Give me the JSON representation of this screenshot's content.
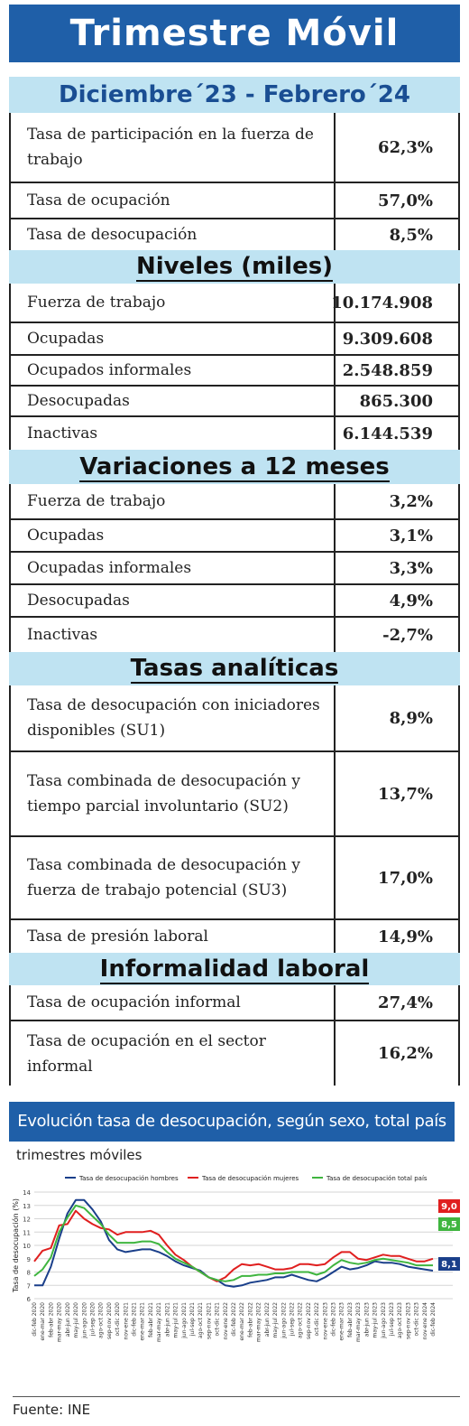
{
  "title": "Trimestre Móvil",
  "period": "Diciembre´23 - Febrero´24",
  "sections": {
    "niveles": "Niveles  (miles)",
    "variaciones": "Variaciones a 12 meses",
    "tasas": "Tasas  analíticas",
    "informalidad": "Informalidad  laboral"
  },
  "rows": [
    {
      "label": "Tasa de participación en la fuerza de trabajo",
      "value": "62,3%"
    },
    {
      "label": "Tasa de ocupación",
      "value": "57,0%"
    },
    {
      "label": "Tasa de desocupación",
      "value": "8,5%"
    },
    {
      "label": "Fuerza de trabajo",
      "value": "10.174.908"
    },
    {
      "label": "Ocupadas",
      "value": "9.309.608"
    },
    {
      "label": "Ocupados informales",
      "value": "2.548.859"
    },
    {
      "label": "Desocupadas",
      "value": "865.300"
    },
    {
      "label": "Inactivas",
      "value": "6.144.539"
    },
    {
      "label": "Fuerza de trabajo",
      "value": "3,2%"
    },
    {
      "label": "Ocupadas",
      "value": "3,1%"
    },
    {
      "label": "Ocupadas informales",
      "value": "3,3%"
    },
    {
      "label": "Desocupadas",
      "value": "4,9%"
    },
    {
      "label": "Inactivas",
      "value": "-2,7%"
    },
    {
      "label": "Tasa de desocupación con iniciadores disponibles (SU1)",
      "value": "8,9%"
    },
    {
      "label": "Tasa combinada de desocupación y tiempo parcial involuntario (SU2)",
      "value": "13,7%"
    },
    {
      "label": "Tasa combinada de desocupación y fuerza de trabajo potencial (SU3)",
      "value": "17,0%"
    },
    {
      "label": "Tasa de presión laboral",
      "value": "14,9%"
    },
    {
      "label": "Tasa de ocupación informal",
      "value": "27,4%"
    },
    {
      "label": "Tasa de ocupación en el sector informal",
      "value": "16,2%"
    }
  ],
  "chart_title": "Evolución tasa de desocupación, según sexo, total país",
  "chart_subtitle": "trimestres móviles",
  "source": "Fuente: INE",
  "chart_data": {
    "type": "line",
    "ylabel": "Tasa de desocupación (%)",
    "ylim": [
      6,
      14
    ],
    "yticks": [
      6,
      7,
      8,
      9,
      10,
      11,
      12,
      13,
      14
    ],
    "grid": true,
    "legend_position": "top",
    "x": [
      "dic-feb 2020",
      "ene-mar 2020",
      "feb-abr 2020",
      "mar-may 2020",
      "abr-jun 2020",
      "may-jul 2020",
      "jun-ago 2020",
      "jul-sep 2020",
      "ago-oct 2020",
      "sep-nov 2020",
      "oct-dic 2020",
      "nov-ene 2021",
      "dic-feb 2021",
      "ene-mar 2021",
      "feb-abr 2021",
      "mar-may 2021",
      "abr-jun 2021",
      "may-jul 2021",
      "jun-ago 2021",
      "jul-sep 2021",
      "ago-oct 2021",
      "sep-nov 2021",
      "oct-dic 2021",
      "nov-ene 2022",
      "dic-feb 2022",
      "ene-mar 2022",
      "feb-abr 2022",
      "mar-may 2022",
      "abr-jun 2022",
      "may-jul 2022",
      "jun-ago 2022",
      "jul-sep 2022",
      "ago-oct 2022",
      "sep-nov 2022",
      "oct-dic 2022",
      "nov-ene 2023",
      "dic-feb 2023",
      "ene-mar 2023",
      "feb-abr 2023",
      "mar-may 2023",
      "abr-jun 2023",
      "may-jul 2023",
      "jun-ago 2023",
      "jul-sep 2023",
      "ago-oct 2023",
      "sep-nov 2023",
      "oct-dic 2023",
      "nov-ene 2024",
      "dic-feb 2024"
    ],
    "series": [
      {
        "name": "Tasa de desocupación hombres",
        "color": "#1a3f8a",
        "end_label": "8,1",
        "values": [
          7.0,
          7.0,
          8.4,
          10.5,
          12.4,
          13.4,
          13.4,
          12.7,
          11.8,
          10.4,
          9.7,
          9.5,
          9.6,
          9.7,
          9.7,
          9.5,
          9.2,
          8.8,
          8.5,
          8.3,
          8.1,
          7.6,
          7.4,
          7.0,
          6.9,
          7.0,
          7.2,
          7.3,
          7.4,
          7.6,
          7.6,
          7.8,
          7.6,
          7.4,
          7.3,
          7.6,
          8.0,
          8.4,
          8.2,
          8.3,
          8.5,
          8.8,
          8.7,
          8.7,
          8.6,
          8.4,
          8.3,
          8.2,
          8.1
        ]
      },
      {
        "name": "Tasa de desocupación mujeres",
        "color": "#e01f1f",
        "end_label": "9,0",
        "values": [
          8.8,
          9.6,
          9.8,
          11.5,
          11.6,
          12.6,
          12.0,
          11.6,
          11.3,
          11.2,
          10.8,
          11.0,
          11.0,
          11.0,
          11.1,
          10.8,
          10.0,
          9.3,
          8.9,
          8.4,
          8.0,
          7.6,
          7.3,
          7.6,
          8.2,
          8.6,
          8.5,
          8.6,
          8.4,
          8.2,
          8.2,
          8.3,
          8.6,
          8.6,
          8.5,
          8.6,
          9.1,
          9.5,
          9.5,
          9.0,
          8.9,
          9.1,
          9.3,
          9.2,
          9.2,
          9.0,
          8.8,
          8.8,
          9.0
        ]
      },
      {
        "name": "Tasa de desocupación total país",
        "color": "#3fb53f",
        "end_label": "8,5",
        "values": [
          7.7,
          8.2,
          9.1,
          11.0,
          12.1,
          13.0,
          12.8,
          12.2,
          11.6,
          10.8,
          10.2,
          10.2,
          10.2,
          10.3,
          10.3,
          10.1,
          9.5,
          9.0,
          8.7,
          8.4,
          8.0,
          7.6,
          7.4,
          7.3,
          7.4,
          7.7,
          7.7,
          7.8,
          7.8,
          7.9,
          7.9,
          8.0,
          8.0,
          8.0,
          7.8,
          8.0,
          8.5,
          8.9,
          8.7,
          8.6,
          8.7,
          8.9,
          9.0,
          8.9,
          8.8,
          8.7,
          8.5,
          8.5,
          8.5
        ]
      }
    ]
  }
}
